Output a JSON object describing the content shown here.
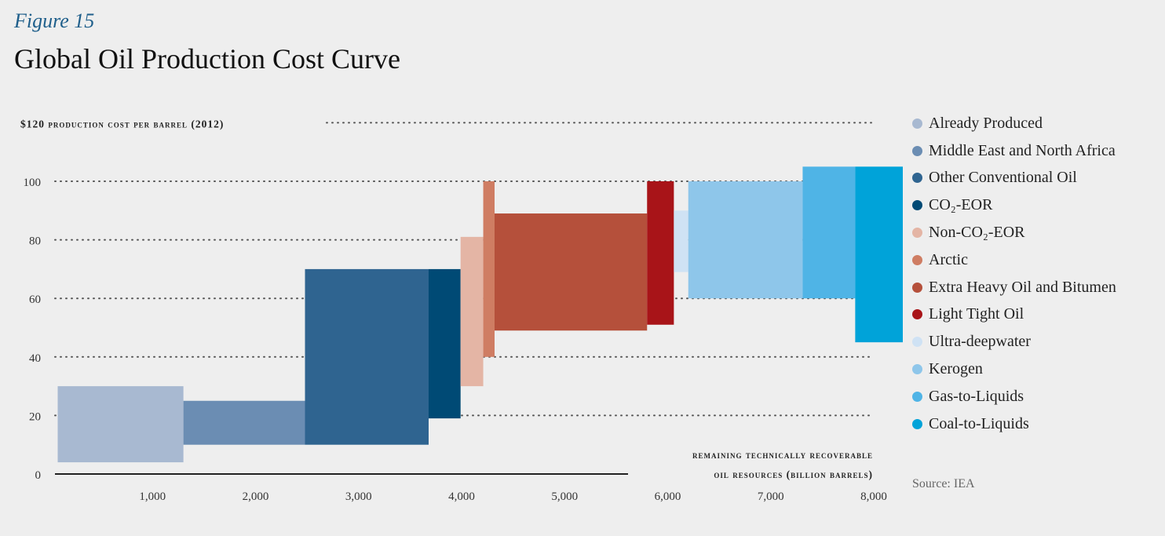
{
  "figure_label": "Figure 15",
  "source": "Source: IEA",
  "chart_data": {
    "type": "bar",
    "title": "Global Oil Production Cost Curve",
    "ylabel": "$120 production cost per barrel (2012)",
    "xlabel_line1": "remaining technically recoverable",
    "xlabel_line2": "oil resources (billion barrels)",
    "ylim": [
      0,
      120
    ],
    "xlim": [
      0,
      8200
    ],
    "yticks": [
      0,
      20,
      40,
      60,
      80,
      100
    ],
    "xticks": [
      1000,
      2000,
      3000,
      4000,
      5000,
      6000,
      7000,
      8000
    ],
    "xtick_labels": [
      "1,000",
      "2,000",
      "3,000",
      "4,000",
      "5,000",
      "6,000",
      "7,000",
      "8,000"
    ],
    "grid": "dotted horizontal lines at 20, 40, 60, 80, 100, 120",
    "legend_position": "right",
    "blocks": [
      {
        "name": "Already Produced",
        "color": "#a8b9d1",
        "x0": 80,
        "x1": 1300,
        "low": 4,
        "high": 30
      },
      {
        "name": "Middle East and North Africa",
        "color": "#6b8db3",
        "x0": 1300,
        "x1": 2480,
        "low": 10,
        "high": 25
      },
      {
        "name": "Other Conventional Oil",
        "color": "#2f6490",
        "x0": 2480,
        "x1": 3680,
        "low": 10,
        "high": 70
      },
      {
        "name": "CO₂-EOR",
        "color": "#004a75",
        "x0": 3680,
        "x1": 3990,
        "low": 19,
        "high": 70
      },
      {
        "name": "Non-CO₂-EOR",
        "color": "#e4b5a5",
        "x0": 3990,
        "x1": 4210,
        "low": 30,
        "high": 81
      },
      {
        "name": "Arctic",
        "color": "#cf7d63",
        "x0": 4210,
        "x1": 4320,
        "low": 40,
        "high": 100
      },
      {
        "name": "Extra Heavy Oil and Bitumen",
        "color": "#b5503b",
        "x0": 4320,
        "x1": 5800,
        "low": 49,
        "high": 89
      },
      {
        "name": "Light Tight Oil",
        "color": "#a81418",
        "x0": 5800,
        "x1": 6060,
        "low": 51,
        "high": 100
      },
      {
        "name": "Ultra-deepwater",
        "color": "#cfe2f4",
        "x0": 6060,
        "x1": 6200,
        "low": 69,
        "high": 90
      },
      {
        "name": "Kerogen",
        "color": "#8ec6ea",
        "x0": 6200,
        "x1": 7310,
        "low": 60,
        "high": 100
      },
      {
        "name": "Gas-to-Liquids",
        "color": "#4fb4e6",
        "x0": 7310,
        "x1": 7820,
        "low": 60,
        "high": 105
      },
      {
        "name": "Coal-to-Liquids",
        "color": "#00a3d9",
        "x0": 7820,
        "x1": 8330,
        "low": 45,
        "high": 105
      }
    ]
  }
}
